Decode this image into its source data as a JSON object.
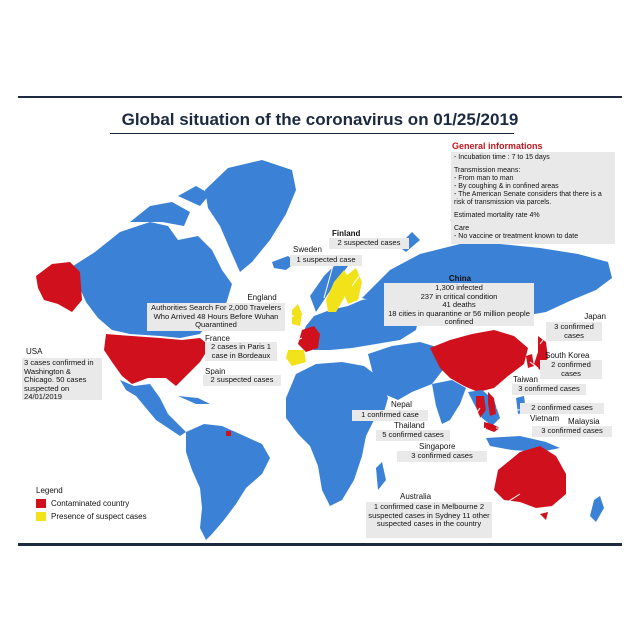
{
  "title": "Global situation of the coronavirus on 01/25/2019",
  "colors": {
    "land": "#3b82d6",
    "contaminated": "#d0111d",
    "suspect": "#f2e21a",
    "navy": "#1b2a41",
    "box": "#e9e9e9"
  },
  "general": {
    "heading": "General informations",
    "incubation": "- Incubation time : 7 to 15 days",
    "transmission_head": "Transmission means:",
    "t1": "- From man to man",
    "t2": "- By coughing & in confined areas",
    "t3": "- The American Senate considers that there is a risk of transmission via parcels.",
    "mortality": "Estimated mortality rate 4%",
    "care_head": "Care",
    "care": "- No vaccine or treatment known to date"
  },
  "legend": {
    "title": "Legend",
    "contaminated": "Contaminated country",
    "suspect": "Presence of suspect cases"
  },
  "countries": {
    "usa": {
      "name": "USA",
      "text": "3 cases confirmed in Washington & Chicago. 50 cases suspected on 24/01/2019"
    },
    "england": {
      "name": "England",
      "text": "Authorities Search For 2,000 Travelers Who Arrived 48 Hours Before Wuhan Quarantined"
    },
    "france": {
      "name": "France",
      "text": "2 cases in Paris 1 case in Bordeaux"
    },
    "spain": {
      "name": "Spain",
      "text": "2 suspected cases"
    },
    "sweden": {
      "name": "Sweden",
      "text": "1 suspected case"
    },
    "finland": {
      "name": "Finland",
      "text": "2 suspected cases"
    },
    "china": {
      "name": "China",
      "l1": "1,300 infected",
      "l2": "237 in critical condition",
      "l3": "41 deaths",
      "l4": "18 cities in quarantine or 56 million people confined"
    },
    "japan": {
      "name": "Japan",
      "text": "3 confirmed cases"
    },
    "south_korea": {
      "name": "South Korea",
      "text": "2 confirmed cases"
    },
    "taiwan": {
      "name": "Taiwan",
      "text": "3 confirmed cases"
    },
    "nepal": {
      "name": "Nepal",
      "text": "1 confirmed case"
    },
    "thailand": {
      "name": "Thailand",
      "text": "5 confirmed cases"
    },
    "vietnam": {
      "name": "Vietnam",
      "text": "2 confirmed cases"
    },
    "malaysia": {
      "name": "Malaysia",
      "text": "3 confirmed cases"
    },
    "singapore": {
      "name": "Singapore",
      "text": "3 confirmed cases"
    },
    "australia": {
      "name": "Australia",
      "text": "1 confirmed case in Melbourne 2 suspected cases in Sydney 11 other suspected cases in the country"
    }
  }
}
